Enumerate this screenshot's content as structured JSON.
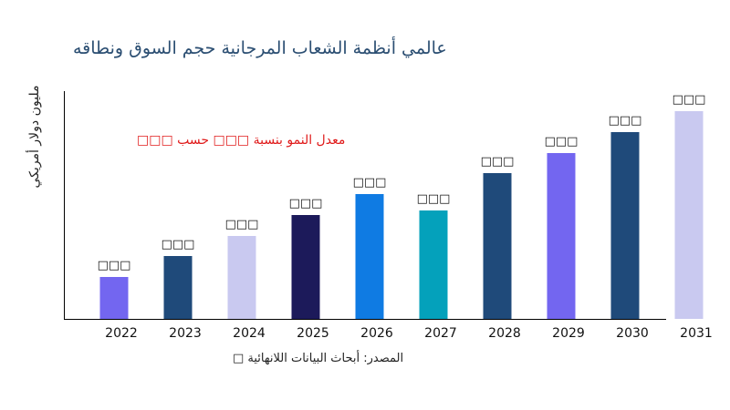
{
  "chart_data": {
    "type": "bar",
    "title": "عالمي أنظمة الشعاب المرجانية حجم السوق ونطاقه",
    "ylabel": "مليون دولار أمريكي",
    "xlabel": "",
    "categories": [
      "2022",
      "2023",
      "2024",
      "2025",
      "2026",
      "2027",
      "2028",
      "2029",
      "2030",
      "2031"
    ],
    "values": [
      46,
      69,
      91,
      114,
      137,
      119,
      160,
      182,
      205,
      228
    ],
    "data_labels": [
      "□□□",
      "□□□",
      "□□□",
      "□□□",
      "□□□",
      "□□□",
      "□□□",
      "□□□",
      "□□□",
      "□□□"
    ],
    "colors": [
      "#7366f0",
      "#1f4a7a",
      "#c9c9f0",
      "#1c1a5a",
      "#0f7be3",
      "#04a1bb",
      "#1f4a7a",
      "#7366f0",
      "#1f4a7a",
      "#c9c9f0"
    ],
    "ylim": [
      0,
      250
    ],
    "grid": false,
    "annotation": "معدل النمو بنسبة □□□ حسب □□□",
    "source": "المصدر: أبحاث البيانات اللانهائية □"
  }
}
